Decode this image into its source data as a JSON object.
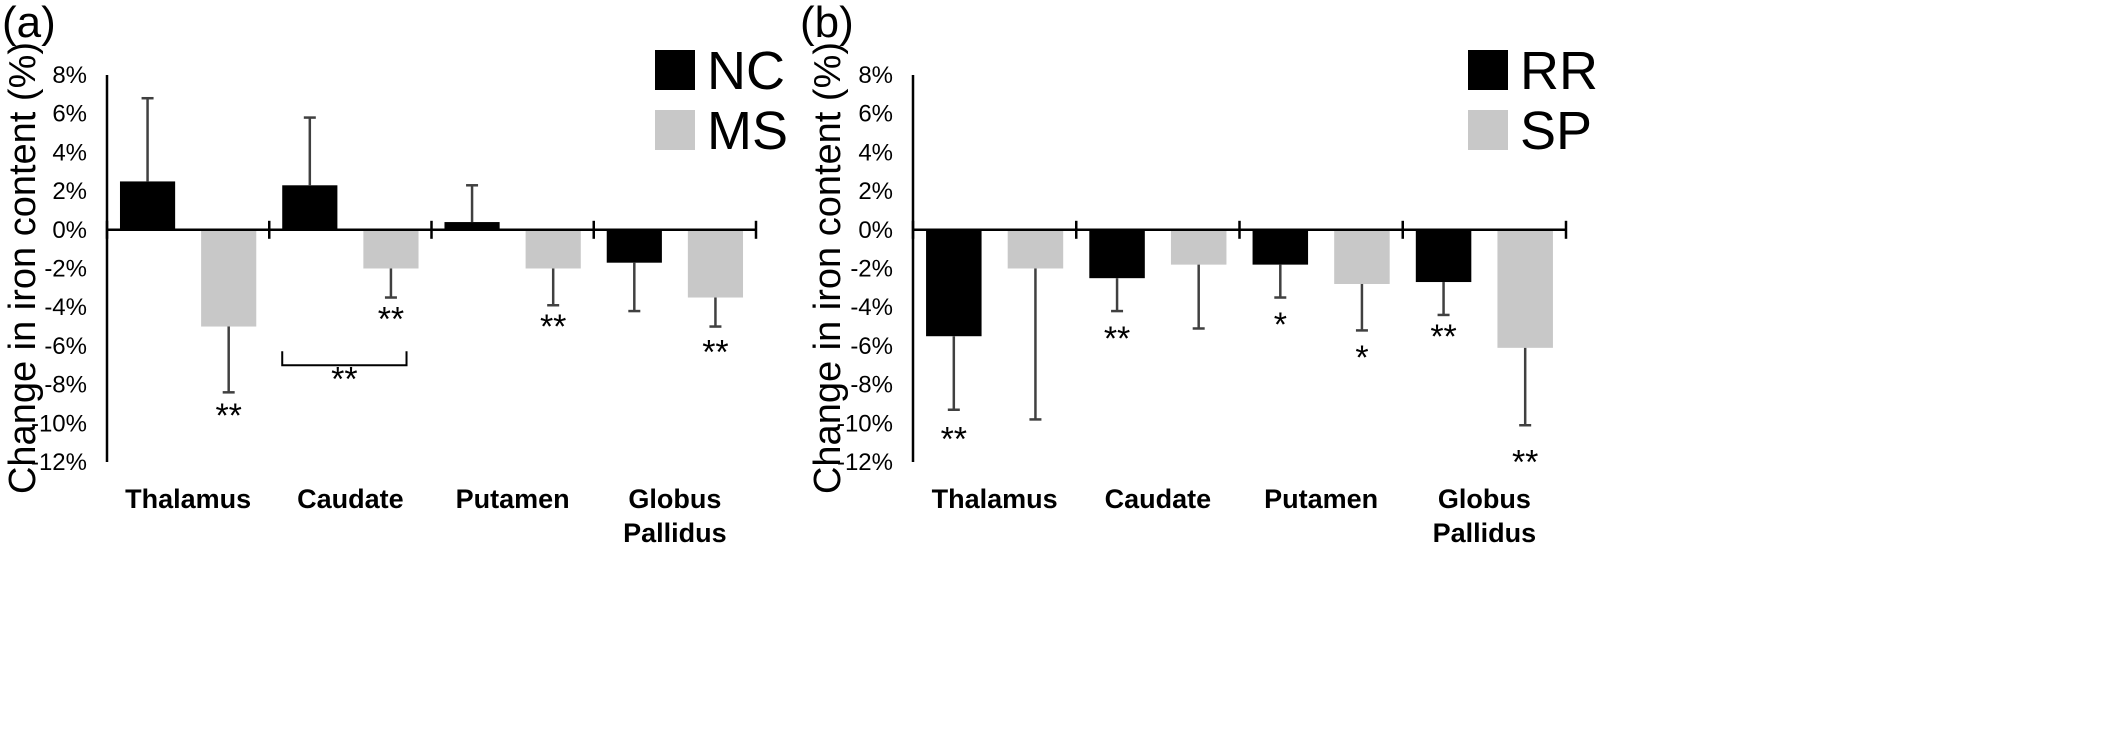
{
  "chart_data": [
    {
      "type": "bar",
      "panel_label": "(a)",
      "title": "",
      "xlabel": "",
      "ylabel": "Change in iron content (%)",
      "ylim": [
        -12,
        8
      ],
      "yticks": [
        "8%",
        "6%",
        "4%",
        "2%",
        "0%",
        "-2%",
        "-4%",
        "-6%",
        "-8%",
        "-10%",
        "-12%"
      ],
      "categories": [
        "Thalamus",
        "Caudate",
        "Putamen",
        "Globus Pallidus"
      ],
      "legend_position": "top-right",
      "series": [
        {
          "name": "NC",
          "color": "#000000",
          "values": [
            2.5,
            2.3,
            0.4,
            -1.7
          ],
          "error": [
            4.3,
            3.5,
            1.9,
            2.5
          ]
        },
        {
          "name": "MS",
          "color": "#c8c8c8",
          "values": [
            -5.0,
            -2.0,
            -2.0,
            -3.5
          ],
          "error": [
            3.4,
            1.5,
            1.9,
            1.5
          ]
        }
      ],
      "annotations": [
        {
          "text": "**",
          "category": 0,
          "series": 1,
          "y": -10.2
        },
        {
          "text": "**",
          "category": 1,
          "series": 1,
          "y": -5.2
        },
        {
          "text": "**",
          "category": 2,
          "series": 1,
          "y": -5.6
        },
        {
          "text": "**",
          "category": 3,
          "series": 1,
          "y": -6.9
        },
        {
          "text": "**",
          "category": 1,
          "between_series": true,
          "y": -8.3,
          "bracket_y": -7.0
        }
      ]
    },
    {
      "type": "bar",
      "panel_label": "(b)",
      "title": "",
      "xlabel": "",
      "ylabel": "Change in iron content (%)",
      "ylim": [
        -12,
        8
      ],
      "yticks": [
        "8%",
        "6%",
        "4%",
        "2%",
        "0%",
        "-2%",
        "-4%",
        "-6%",
        "-8%",
        "-10%",
        "-12%"
      ],
      "categories": [
        "Thalamus",
        "Caudate",
        "Putamen",
        "Globus Pallidus"
      ],
      "legend_position": "top-right",
      "series": [
        {
          "name": "RR",
          "color": "#000000",
          "values": [
            -5.5,
            -2.5,
            -1.8,
            -2.7
          ],
          "error": [
            3.8,
            1.7,
            1.7,
            1.7
          ]
        },
        {
          "name": "SP",
          "color": "#c8c8c8",
          "values": [
            -2.0,
            -1.8,
            -2.8,
            -6.1
          ],
          "error": [
            7.8,
            3.3,
            2.4,
            4.0
          ]
        }
      ],
      "annotations": [
        {
          "text": "**",
          "category": 0,
          "series": 0,
          "y": -11.4
        },
        {
          "text": "**",
          "category": 1,
          "series": 0,
          "y": -6.2
        },
        {
          "text": "*",
          "category": 2,
          "series": 0,
          "y": -5.5
        },
        {
          "text": "*",
          "category": 2,
          "series": 1,
          "y": -7.2
        },
        {
          "text": "**",
          "category": 3,
          "series": 0,
          "y": -6.1
        },
        {
          "text": "**",
          "category": 3,
          "series": 1,
          "y": -12.6
        }
      ]
    }
  ]
}
